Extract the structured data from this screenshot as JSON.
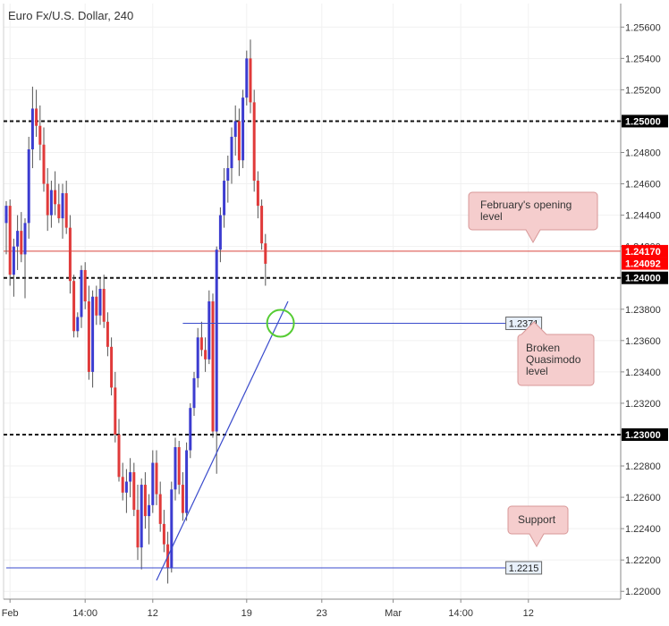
{
  "chart_data": {
    "type": "candlestick",
    "title": "Euro Fx/U.S. Dollar, 240",
    "ylim": [
      1.2195,
      1.2575
    ],
    "y_ticks": [
      "1.25600",
      "1.25400",
      "1.25200",
      "1.25000",
      "1.24800",
      "1.24600",
      "1.24400",
      "1.24200",
      "1.24000",
      "1.23800",
      "1.23600",
      "1.23400",
      "1.23200",
      "1.23000",
      "1.22800",
      "1.22600",
      "1.22400",
      "1.22200",
      "1.22000"
    ],
    "x_ticks": [
      {
        "label": "Feb",
        "index": 1
      },
      {
        "label": "14:00",
        "index": 21
      },
      {
        "label": "12",
        "index": 39
      },
      {
        "label": "19",
        "index": 64
      },
      {
        "label": "23",
        "index": 84
      },
      {
        "label": "Mar",
        "index": 103
      },
      {
        "label": "14:00",
        "index": 121
      },
      {
        "label": "12",
        "index": 139
      }
    ],
    "candles": [
      [
        1.2435,
        1.2449,
        1.2415,
        1.2446
      ],
      [
        1.2446,
        1.245,
        1.2395,
        1.2402
      ],
      [
        1.2402,
        1.2425,
        1.2388,
        1.242
      ],
      [
        1.242,
        1.244,
        1.2405,
        1.243
      ],
      [
        1.243,
        1.2442,
        1.241,
        1.2415
      ],
      [
        1.2415,
        1.2438,
        1.2387,
        1.2435
      ],
      [
        1.2435,
        1.249,
        1.2425,
        1.2482
      ],
      [
        1.2482,
        1.2522,
        1.247,
        1.2508
      ],
      [
        1.2508,
        1.252,
        1.249,
        1.2497
      ],
      [
        1.2497,
        1.251,
        1.2475,
        1.2485
      ],
      [
        1.2485,
        1.2496,
        1.2455,
        1.246
      ],
      [
        1.246,
        1.247,
        1.243,
        1.244
      ],
      [
        1.244,
        1.2462,
        1.2432,
        1.2456
      ],
      [
        1.2456,
        1.2468,
        1.244,
        1.2447
      ],
      [
        1.2447,
        1.246,
        1.2435,
        1.2438
      ],
      [
        1.2438,
        1.246,
        1.2425,
        1.2454
      ],
      [
        1.2454,
        1.2462,
        1.2428,
        1.2432
      ],
      [
        1.2432,
        1.244,
        1.239,
        1.2398
      ],
      [
        1.2398,
        1.2402,
        1.2362,
        1.2366
      ],
      [
        1.2366,
        1.2378,
        1.2362,
        1.2375
      ],
      [
        1.2375,
        1.2408,
        1.2368,
        1.2405
      ],
      [
        1.2405,
        1.241,
        1.238,
        1.2385
      ],
      [
        1.2385,
        1.2395,
        1.2335,
        1.234
      ],
      [
        1.234,
        1.2392,
        1.233,
        1.2388
      ],
      [
        1.2388,
        1.2395,
        1.237,
        1.2376
      ],
      [
        1.2376,
        1.24,
        1.237,
        1.2393
      ],
      [
        1.2393,
        1.2402,
        1.2368,
        1.2372
      ],
      [
        1.2372,
        1.2378,
        1.235,
        1.2356
      ],
      [
        1.2356,
        1.2362,
        1.2325,
        1.233
      ],
      [
        1.233,
        1.234,
        1.2295,
        1.23
      ],
      [
        1.23,
        1.231,
        1.227,
        1.2273
      ],
      [
        1.2273,
        1.2282,
        1.2258,
        1.2263
      ],
      [
        1.2263,
        1.2278,
        1.225,
        1.227
      ],
      [
        1.227,
        1.2285,
        1.226,
        1.2276
      ],
      [
        1.2276,
        1.2282,
        1.2248,
        1.2252
      ],
      [
        1.2252,
        1.2268,
        1.222,
        1.2228
      ],
      [
        1.2228,
        1.2272,
        1.2214,
        1.2268
      ],
      [
        1.2268,
        1.2276,
        1.224,
        1.2248
      ],
      [
        1.2248,
        1.2262,
        1.223,
        1.2255
      ],
      [
        1.2255,
        1.229,
        1.225,
        1.2282
      ],
      [
        1.2282,
        1.229,
        1.2255,
        1.2262
      ],
      [
        1.2262,
        1.227,
        1.2238,
        1.2243
      ],
      [
        1.2243,
        1.2252,
        1.2225,
        1.223
      ],
      [
        1.223,
        1.2238,
        1.2205,
        1.2215
      ],
      [
        1.2215,
        1.227,
        1.2212,
        1.2265
      ],
      [
        1.2265,
        1.2298,
        1.2258,
        1.2292
      ],
      [
        1.2292,
        1.2296,
        1.2262,
        1.2268
      ],
      [
        1.2268,
        1.2276,
        1.2245,
        1.225
      ],
      [
        1.225,
        1.2295,
        1.2245,
        1.229
      ],
      [
        1.229,
        1.232,
        1.2285,
        1.2317
      ],
      [
        1.2317,
        1.234,
        1.2312,
        1.2336
      ],
      [
        1.2336,
        1.2368,
        1.233,
        1.2362
      ],
      [
        1.2362,
        1.2372,
        1.235,
        1.2354
      ],
      [
        1.2354,
        1.2362,
        1.234,
        1.2348
      ],
      [
        1.2348,
        1.2392,
        1.2345,
        1.2385
      ],
      [
        1.2385,
        1.239,
        1.2298,
        1.2302
      ],
      [
        1.2302,
        1.242,
        1.2275,
        1.2418
      ],
      [
        1.2418,
        1.2445,
        1.241,
        1.244
      ],
      [
        1.244,
        1.247,
        1.2432,
        1.2462
      ],
      [
        1.2462,
        1.2478,
        1.2448,
        1.247
      ],
      [
        1.247,
        1.2496,
        1.246,
        1.249
      ],
      [
        1.249,
        1.251,
        1.2478,
        1.25
      ],
      [
        1.25,
        1.2508,
        1.2465,
        1.2475
      ],
      [
        1.2475,
        1.252,
        1.247,
        1.2515
      ],
      [
        1.2515,
        1.2545,
        1.251,
        1.254
      ],
      [
        1.254,
        1.2552,
        1.2505,
        1.2512
      ],
      [
        1.2512,
        1.252,
        1.2455,
        1.2462
      ],
      [
        1.2462,
        1.2468,
        1.2438,
        1.2446
      ],
      [
        1.2446,
        1.245,
        1.2418,
        1.2422
      ],
      [
        1.2422,
        1.2428,
        1.2395,
        1.2409
      ]
    ],
    "colors": {
      "bull": "#3c3cd0",
      "bear": "#e03a3a",
      "wick": "#555555"
    },
    "levels": [
      {
        "value": 1.25,
        "label": "1.25000",
        "style": "dashed",
        "color": "#111111",
        "badge_bg": "#000000",
        "badge_fg": "#ffffff"
      },
      {
        "value": 1.2417,
        "label": "1.24170",
        "style": "solid",
        "color": "#d9443c",
        "badge_bg": "#ff0000",
        "badge_fg": "#ffffff"
      },
      {
        "value": 1.24092,
        "label": "1.24092",
        "style": "none",
        "color": "#e00000",
        "badge_bg": "#ff0000",
        "badge_fg": "#ffffff"
      },
      {
        "value": 1.24,
        "label": "1.24000",
        "style": "dashed",
        "color": "#111111",
        "badge_bg": "#000000",
        "badge_fg": "#ffffff"
      },
      {
        "value": 1.23,
        "label": "1.23000",
        "style": "dashed",
        "color": "#111111",
        "badge_bg": "#000000",
        "badge_fg": "#ffffff"
      }
    ],
    "hlines": [
      {
        "value": 1.2371,
        "label": "1.2371",
        "from_index": 47,
        "to_index": 133,
        "color": "#3a4bcc"
      },
      {
        "value": 1.2215,
        "label": "1.2215",
        "from_index": 0,
        "to_index": 133,
        "color": "#3a4bcc"
      }
    ],
    "trendline": {
      "from": [
        40,
        1.2207
      ],
      "to": [
        75,
        1.2385
      ],
      "color": "#3a4bcc"
    },
    "circle": {
      "index": 73,
      "value": 1.2371,
      "color": "#55cc33"
    },
    "callouts": [
      {
        "lines": [
          "February's opening",
          "level"
        ]
      },
      {
        "lines": [
          "Broken",
          "Quasimodo",
          "level"
        ]
      },
      {
        "lines": [
          "Support"
        ]
      }
    ]
  }
}
